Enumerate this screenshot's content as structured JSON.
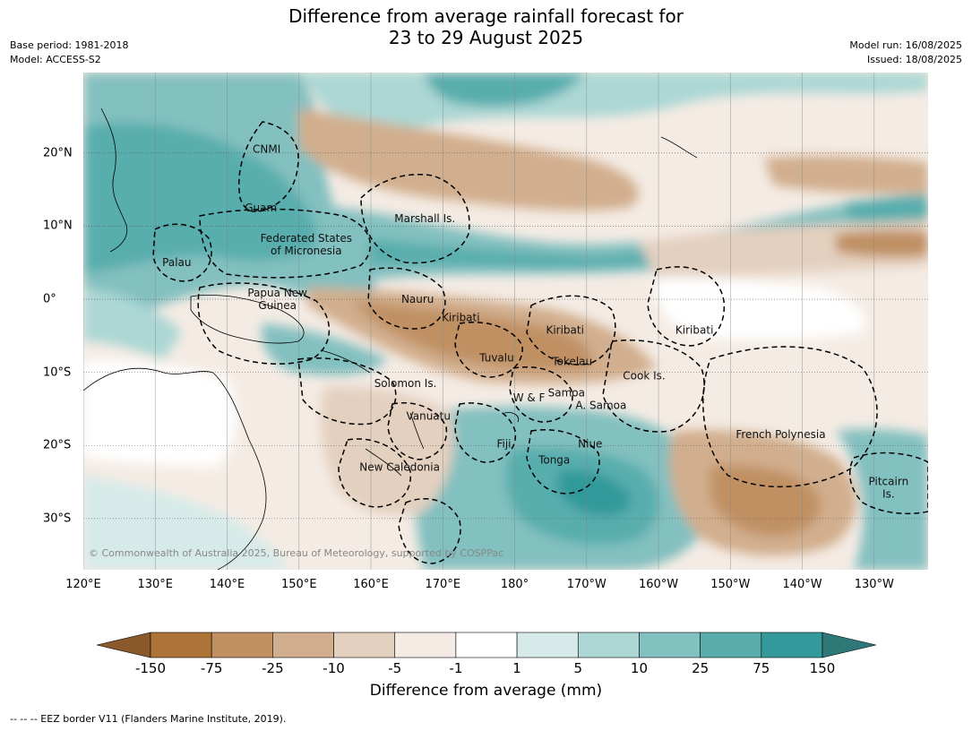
{
  "title_line1": "Difference from average rainfall forecast for",
  "title_line2": "23 to 29 August 2025",
  "meta_left": [
    "Base period: 1981-2018",
    "Model: ACCESS-S2"
  ],
  "meta_right": [
    "Model run: 16/08/2025",
    "Issued: 18/08/2025"
  ],
  "lon_ticks": [
    {
      "label": "120°E",
      "lon": 120
    },
    {
      "label": "130°E",
      "lon": 130
    },
    {
      "label": "140°E",
      "lon": 140
    },
    {
      "label": "150°E",
      "lon": 150
    },
    {
      "label": "160°E",
      "lon": 160
    },
    {
      "label": "170°E",
      "lon": 170
    },
    {
      "label": "180°",
      "lon": 180
    },
    {
      "label": "170°W",
      "lon": 190
    },
    {
      "label": "160°W",
      "lon": 200
    },
    {
      "label": "150°W",
      "lon": 210
    },
    {
      "label": "140°W",
      "lon": 220
    },
    {
      "label": "130°W",
      "lon": 230
    }
  ],
  "lat_ticks": [
    {
      "label": "20°N",
      "lat": 20
    },
    {
      "label": "10°N",
      "lat": 10
    },
    {
      "label": "0°",
      "lat": 0
    },
    {
      "label": "10°S",
      "lat": -10
    },
    {
      "label": "20°S",
      "lat": -20
    },
    {
      "label": "30°S",
      "lat": -30
    }
  ],
  "map_extent": {
    "lon_min": 120,
    "lon_max": 237.5,
    "lat_min": -37,
    "lat_max": 31
  },
  "places": [
    {
      "text": [
        "CNMI"
      ],
      "lon": 145.5,
      "lat": 20.5
    },
    {
      "text": [
        "Guam"
      ],
      "lon": 144.7,
      "lat": 12.5
    },
    {
      "text": [
        "Marshall Is."
      ],
      "lon": 167.5,
      "lat": 11.0
    },
    {
      "text": [
        "Federated States",
        "of Micronesia"
      ],
      "lon": 151.0,
      "lat": 7.5
    },
    {
      "text": [
        "Palau"
      ],
      "lon": 133.0,
      "lat": 5.0
    },
    {
      "text": [
        "Papua New",
        "Guinea"
      ],
      "lon": 147.0,
      "lat": 0.0
    },
    {
      "text": [
        "Nauru"
      ],
      "lon": 166.5,
      "lat": 0.0
    },
    {
      "text": [
        "Kiribati"
      ],
      "lon": 172.5,
      "lat": -2.5
    },
    {
      "text": [
        "Kiribati"
      ],
      "lon": 187.0,
      "lat": -4.2
    },
    {
      "text": [
        "Kiribati"
      ],
      "lon": 205.0,
      "lat": -4.2
    },
    {
      "text": [
        "Tuvalu"
      ],
      "lon": 177.5,
      "lat": -8.0
    },
    {
      "text": [
        "Tokelau"
      ],
      "lon": 188.0,
      "lat": -8.5
    },
    {
      "text": [
        "Cook Is."
      ],
      "lon": 198.0,
      "lat": -10.5
    },
    {
      "text": [
        "Solomon Is."
      ],
      "lon": 164.8,
      "lat": -11.5
    },
    {
      "text": [
        "Samoa"
      ],
      "lon": 187.2,
      "lat": -12.8
    },
    {
      "text": [
        "W & F"
      ],
      "lon": 182.0,
      "lat": -13.5
    },
    {
      "text": [
        "A. Samoa"
      ],
      "lon": 192.0,
      "lat": -14.5
    },
    {
      "text": [
        "Vanuatu"
      ],
      "lon": 168.0,
      "lat": -16.0
    },
    {
      "text": [
        "French Polynesia"
      ],
      "lon": 217.0,
      "lat": -18.5
    },
    {
      "text": [
        "Fiji"
      ],
      "lon": 178.5,
      "lat": -19.8
    },
    {
      "text": [
        "Niue"
      ],
      "lon": 190.5,
      "lat": -19.8
    },
    {
      "text": [
        "Tonga"
      ],
      "lon": 185.5,
      "lat": -22.0
    },
    {
      "text": [
        "New Caledonia"
      ],
      "lon": 164.0,
      "lat": -23.0
    },
    {
      "text": [
        "Pitcairn",
        "Is."
      ],
      "lon": 232.0,
      "lat": -25.8
    }
  ],
  "copyright": "© Commonwealth of Australia 2025, Bureau of Meteorology, supported by COSPPac",
  "colorbar": {
    "tick_labels": [
      "-150",
      "-75",
      "-25",
      "-10",
      "-5",
      "-1",
      "1",
      "5",
      "10",
      "25",
      "75",
      "150"
    ],
    "colors": [
      "#8b5a2b",
      "#ad7438",
      "#c09063",
      "#d1ae8d",
      "#e4d0bf",
      "#f4ebe4",
      "#ffffff",
      "#d6ebe9",
      "#acd7d4",
      "#83c0c0",
      "#59adad",
      "#33999a",
      "#2e7877"
    ],
    "title": "Difference from average (mm)"
  },
  "footnote": "--  --  -- EEZ border V11 (Flanders Marine Institute, 2019)."
}
